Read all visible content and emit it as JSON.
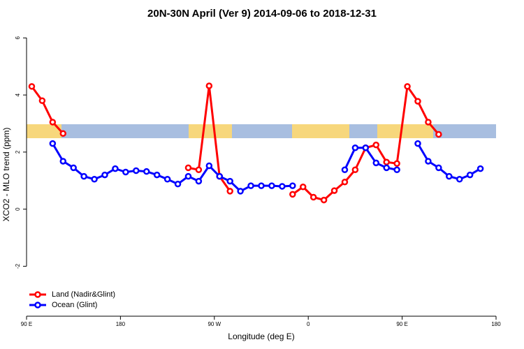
{
  "chart_data": {
    "type": "line",
    "title": "20N-30N April (Ver 9)   2014-09-06 to 2018-12-31",
    "x_label": "Longitude (deg E)",
    "y_label": "XCO2 - MLO trend (ppm)",
    "xlim": [
      90,
      540
    ],
    "xticks": [
      {
        "value": 90,
        "label": "90 E"
      },
      180,
      {
        "value": 270,
        "label": "90 W"
      },
      {
        "value": 360,
        "label": "0"
      },
      {
        "value": 450,
        "label": "90 E"
      },
      {
        "value": 540,
        "label": "180"
      }
    ],
    "ylim": [
      -3.75,
      6.35
    ],
    "yticks": [
      -2,
      0,
      2,
      4,
      6
    ],
    "legend": "bottom-left",
    "x": [
      95,
      105,
      115,
      125,
      135,
      145,
      155,
      165,
      175,
      185,
      195,
      205,
      215,
      225,
      235,
      245,
      255,
      265,
      275,
      285,
      295,
      305,
      315,
      325,
      335,
      345,
      355,
      365,
      375,
      385,
      395,
      405,
      415,
      425,
      435,
      445,
      455,
      465,
      475,
      485,
      495,
      505,
      515,
      525
    ],
    "series": [
      {
        "name": "Land (Nadir&Glint)",
        "color": "#ff0000",
        "values": [
          4.3,
          3.8,
          3.05,
          2.65,
          null,
          null,
          null,
          null,
          null,
          null,
          null,
          null,
          null,
          null,
          null,
          1.45,
          1.38,
          4.32,
          1.15,
          0.63,
          null,
          null,
          null,
          null,
          null,
          0.52,
          0.78,
          0.42,
          0.32,
          0.65,
          0.95,
          1.38,
          2.15,
          2.25,
          1.65,
          1.6,
          4.3,
          3.78,
          3.05,
          2.62,
          null,
          null,
          null,
          null
        ]
      },
      {
        "name": "Ocean (Glint)",
        "color": "#0000ff",
        "values": [
          null,
          null,
          2.3,
          1.68,
          1.45,
          1.15,
          1.05,
          1.2,
          1.42,
          1.3,
          1.35,
          1.32,
          1.2,
          1.05,
          0.88,
          1.15,
          0.98,
          1.52,
          1.15,
          0.98,
          0.63,
          0.82,
          0.82,
          0.82,
          0.8,
          0.82,
          null,
          null,
          null,
          null,
          1.38,
          2.15,
          2.15,
          1.62,
          1.45,
          1.38,
          null,
          2.3,
          1.68,
          1.45,
          1.15,
          1.05,
          1.2,
          1.42
        ]
      }
    ]
  }
}
